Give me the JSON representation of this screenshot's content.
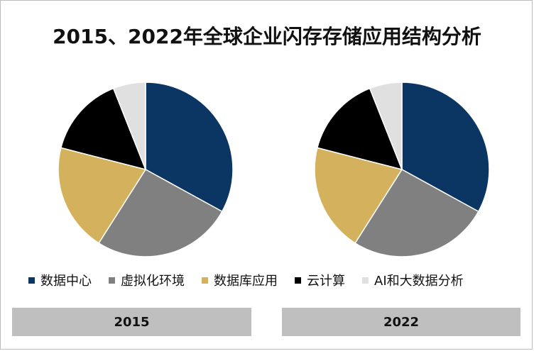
{
  "title": "2015、2022年全球企业闪存存储应用结构分析",
  "chart_data": [
    {
      "type": "pie",
      "label": "2015",
      "categories": [
        "数据中心",
        "虚拟化环境",
        "数据库应用",
        "云计算",
        "AI和大数据分析"
      ],
      "values": [
        33,
        26,
        20,
        15,
        6
      ]
    },
    {
      "type": "pie",
      "label": "2022",
      "categories": [
        "数据中心",
        "虚拟化环境",
        "数据库应用",
        "云计算",
        "AI和大数据分析"
      ],
      "values": [
        33,
        26,
        20,
        15,
        6
      ]
    }
  ],
  "legend": [
    {
      "label": "数据中心",
      "color": "#0b3563"
    },
    {
      "label": "虚拟化环境",
      "color": "#808080"
    },
    {
      "label": "数据库应用",
      "color": "#d4b15c"
    },
    {
      "label": "云计算",
      "color": "#000000"
    },
    {
      "label": "AI和大数据分析",
      "color": "#e0e0e0"
    }
  ],
  "years": [
    "2015",
    "2022"
  ]
}
